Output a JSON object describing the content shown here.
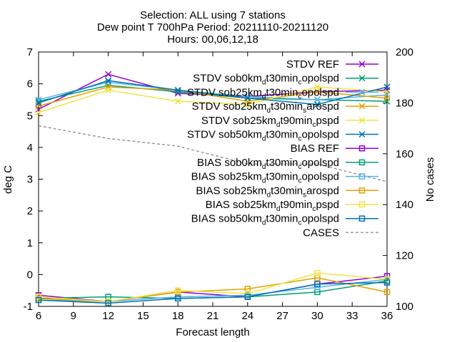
{
  "chart_data": {
    "type": "line",
    "title": [
      "Selection: ALL using      7 stations",
      "Dew point T 700hPa   Period: 20211110-20211120",
      "Hours: 00,06,12,18"
    ],
    "xlabel": "Forecast length",
    "ylabel": "deg C",
    "y2label": "No cases",
    "xlim": [
      6,
      36
    ],
    "ylim": [
      -1,
      7
    ],
    "y2lim": [
      100,
      200
    ],
    "xticks": [
      6,
      9,
      12,
      15,
      18,
      21,
      24,
      27,
      30,
      33,
      36
    ],
    "yticks": [
      -1,
      0,
      1,
      2,
      3,
      4,
      5,
      6,
      7
    ],
    "y2ticks": [
      100,
      120,
      140,
      160,
      180,
      200
    ],
    "grid": false,
    "legend_position": "top-right, inside",
    "x": [
      6,
      12,
      18,
      24,
      30,
      36
    ],
    "series": [
      {
        "name": "STDV REF",
        "color": "#9400d3",
        "marker": "x",
        "values": [
          5.2,
          6.3,
          5.7,
          5.6,
          5.75,
          5.8
        ]
      },
      {
        "name": "STDV sob0km_d t30min_c opolspd",
        "color": "#009e73",
        "marker": "x",
        "values": [
          5.45,
          5.95,
          5.75,
          5.55,
          5.5,
          5.45
        ]
      },
      {
        "name": "STDV sob25km_d t30min_c opolspd",
        "color": "#56b4e9",
        "marker": "x",
        "values": [
          5.5,
          6.05,
          5.8,
          5.6,
          5.5,
          5.65
        ]
      },
      {
        "name": "STDV sob25km_d t30min_s arospd",
        "color": "#e69f00",
        "marker": "x",
        "values": [
          5.3,
          5.9,
          5.8,
          5.45,
          5.75,
          5.55
        ]
      },
      {
        "name": "STDV sob25km_d t90min_c pspd",
        "color": "#f0e442",
        "marker": "x",
        "values": [
          5.1,
          5.8,
          5.45,
          5.35,
          5.9,
          5.75
        ]
      },
      {
        "name": "STDV sob50km_d t30min_c opolspd",
        "color": "#0072b2",
        "marker": "x",
        "values": [
          5.4,
          6.1,
          5.8,
          5.55,
          5.35,
          5.9
        ]
      },
      {
        "name": "BIAS REF",
        "color": "#9400d3",
        "marker": "square",
        "values": [
          -0.65,
          -0.85,
          -0.55,
          -0.7,
          -0.3,
          -0.05
        ]
      },
      {
        "name": "BIAS sob0km_d t30min_c opolspd",
        "color": "#009e73",
        "marker": "square",
        "values": [
          -0.75,
          -0.7,
          -0.75,
          -0.7,
          -0.55,
          -0.2
        ]
      },
      {
        "name": "BIAS sob25km_d t30min_c opolspd",
        "color": "#56b4e9",
        "marker": "square",
        "values": [
          -0.8,
          -0.85,
          -0.7,
          -0.65,
          -0.4,
          -0.15
        ]
      },
      {
        "name": "BIAS sob25km_d t30min_s arospd",
        "color": "#e69f00",
        "marker": "square",
        "values": [
          -0.75,
          -0.85,
          -0.55,
          -0.45,
          -0.1,
          -0.55
        ]
      },
      {
        "name": "BIAS sob25km_d t90min_c pspd",
        "color": "#f0e442",
        "marker": "square",
        "values": [
          -0.7,
          -0.85,
          -0.5,
          -0.6,
          0.05,
          -0.15
        ]
      },
      {
        "name": "BIAS sob50km_d t30min_c opolspd",
        "color": "#0072b2",
        "marker": "square",
        "values": [
          -0.8,
          -0.9,
          -0.75,
          -0.7,
          -0.3,
          -0.25
        ]
      }
    ],
    "cases": {
      "name": "CASES",
      "color": "#999999",
      "axis": "y2",
      "values": [
        171,
        166,
        163,
        156,
        156,
        149
      ]
    }
  },
  "legend": [
    {
      "base": "STDV REF",
      "sub": "",
      "tail": ""
    },
    {
      "base": "STDV sob0km",
      "sub": "d",
      "mid": "t30min",
      "sub2": "c",
      "tail": "opolspd"
    },
    {
      "base": "STDV sob25km",
      "sub": "d",
      "mid": "t30min",
      "sub2": "c",
      "tail": "opolspd"
    },
    {
      "base": "STDV sob25km",
      "sub": "d",
      "mid": "t30min",
      "sub2": "s",
      "tail": "arospd"
    },
    {
      "base": "STDV sob25km",
      "sub": "d",
      "mid": "t90min",
      "sub2": "c",
      "tail": "pspd"
    },
    {
      "base": "STDV sob50km",
      "sub": "d",
      "mid": "t30min",
      "sub2": "c",
      "tail": "opolspd"
    },
    {
      "base": "BIAS REF",
      "sub": "",
      "tail": ""
    },
    {
      "base": "BIAS sob0km",
      "sub": "d",
      "mid": "t30min",
      "sub2": "c",
      "tail": "opolspd"
    },
    {
      "base": "BIAS sob25km",
      "sub": "d",
      "mid": "t30min",
      "sub2": "c",
      "tail": "opolspd"
    },
    {
      "base": "BIAS sob25km",
      "sub": "d",
      "mid": "t30min",
      "sub2": "s",
      "tail": "arospd"
    },
    {
      "base": "BIAS sob25km",
      "sub": "d",
      "mid": "t90min",
      "sub2": "c",
      "tail": "pspd"
    },
    {
      "base": "BIAS sob50km",
      "sub": "d",
      "mid": "t30min",
      "sub2": "c",
      "tail": "opolspd"
    },
    {
      "base": "CASES",
      "sub": "",
      "tail": ""
    }
  ]
}
